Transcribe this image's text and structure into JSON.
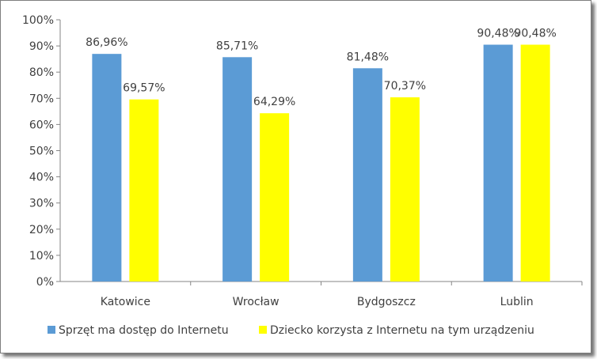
{
  "chart_data": {
    "type": "bar",
    "categories": [
      "Katowice",
      "Wrocław",
      "Bydgoszcz",
      "Lublin"
    ],
    "series": [
      {
        "name": "Sprzęt ma dostęp do Internetu",
        "color": "#5b9bd5",
        "values": [
          86.96,
          85.71,
          81.48,
          90.48
        ],
        "labels": [
          "86,96%",
          "85,71%",
          "81,48%",
          "90,48%"
        ]
      },
      {
        "name": "Dziecko korzysta z Internetu na tym urządzeniu",
        "color": "#ffff00",
        "values": [
          69.57,
          64.29,
          70.37,
          90.48
        ],
        "labels": [
          "69,57%",
          "64,29%",
          "70,37%",
          "90,48%"
        ]
      }
    ],
    "ylim": [
      0,
      100
    ],
    "yticks": [
      "0%",
      "10%",
      "20%",
      "30%",
      "40%",
      "50%",
      "60%",
      "70%",
      "80%",
      "90%",
      "100%"
    ],
    "grid": false,
    "legend": "bottom"
  }
}
